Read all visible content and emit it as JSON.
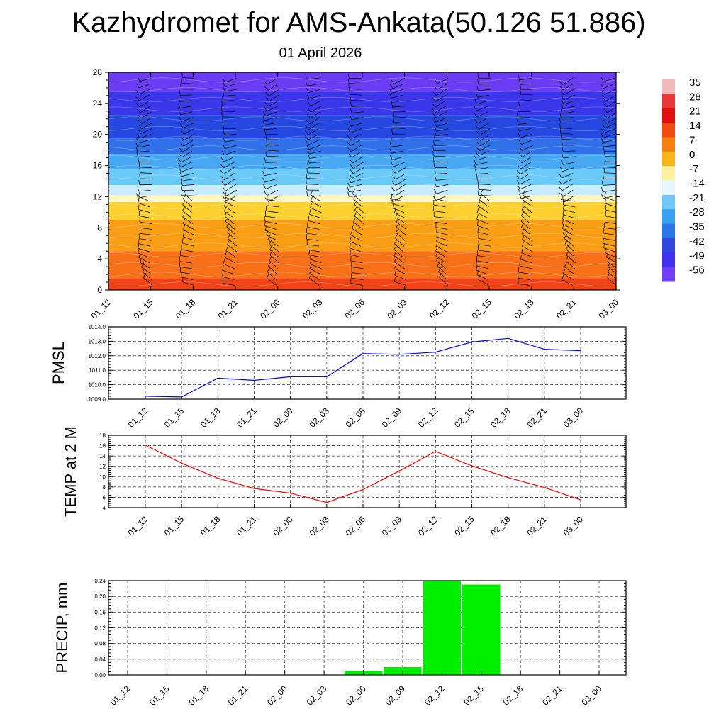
{
  "header": {
    "title": "Kazhydromet for AMS-Ankata(50.126 51.886)",
    "date": "01 April 2026"
  },
  "chart_data": [
    {
      "type": "heatmap",
      "name": "vertical-cross-section",
      "title": "",
      "xlabel": "",
      "ylabel": "",
      "categories": [
        "01_12",
        "01_15",
        "01_18",
        "01_21",
        "02_00",
        "02_03",
        "02_06",
        "02_09",
        "02_12",
        "02_15",
        "02_18",
        "02_21",
        "03_00"
      ],
      "y_ticks": [
        "0",
        "4",
        "8",
        "12",
        "16",
        "20",
        "24",
        "28"
      ],
      "ylim": [
        0,
        28
      ],
      "overlay": "wind barbs",
      "colorbar": {
        "labels": [
          "35",
          "28",
          "21",
          "14",
          "7",
          "0",
          "-7",
          "-14",
          "-21",
          "-28",
          "-35",
          "-42",
          "-49",
          "-56"
        ],
        "colors": [
          "#f0b8b8",
          "#e83838",
          "#e01010",
          "#f04a10",
          "#f88010",
          "#fab418",
          "#fff0a0",
          "#e8f6ff",
          "#70c8f8",
          "#38a0f0",
          "#2878e8",
          "#3048e0",
          "#4030f0",
          "#7040f8"
        ]
      },
      "bands": [
        {
          "from": 0,
          "to": 1.5,
          "color": "#f04418"
        },
        {
          "from": 1.5,
          "to": 5,
          "color": "#f87018"
        },
        {
          "from": 5,
          "to": 9,
          "color": "#fa9e16"
        },
        {
          "from": 9,
          "to": 11.3,
          "color": "#fcd030"
        },
        {
          "from": 11.3,
          "to": 12.2,
          "color": "#fff6c0"
        },
        {
          "from": 12.2,
          "to": 13.5,
          "color": "#c8ecff"
        },
        {
          "from": 13.5,
          "to": 15.5,
          "color": "#6ccaf8"
        },
        {
          "from": 15.5,
          "to": 17.5,
          "color": "#48a8f4"
        },
        {
          "from": 17.5,
          "to": 19.5,
          "color": "#3070e8"
        },
        {
          "from": 19.5,
          "to": 22.5,
          "color": "#2448e0"
        },
        {
          "from": 22.5,
          "to": 25.5,
          "color": "#3a36ea"
        },
        {
          "from": 25.5,
          "to": 28,
          "color": "#6a3cf4"
        }
      ]
    },
    {
      "type": "line",
      "name": "pmsl",
      "title": "",
      "xlabel": "",
      "ylabel": "PMSL",
      "categories": [
        "01_12",
        "01_15",
        "01_18",
        "01_21",
        "02_00",
        "02_03",
        "02_06",
        "02_09",
        "02_12",
        "02_15",
        "02_18",
        "02_21",
        "03_00"
      ],
      "values": [
        1009.2,
        1009.15,
        1010.45,
        1010.3,
        1010.55,
        1010.55,
        1012.15,
        1012.1,
        1012.25,
        1012.95,
        1013.2,
        1012.45,
        1012.35
      ],
      "y_ticks": [
        "1009.0",
        "1010.0",
        "1011.0",
        "1012.0",
        "1013.0",
        "1014.0"
      ],
      "ylim": [
        1009.0,
        1014.0
      ],
      "color": "#0000ff",
      "grid": true
    },
    {
      "type": "line",
      "name": "temp-2m",
      "title": "",
      "xlabel": "",
      "ylabel": "TEMP at 2 M",
      "categories": [
        "01_12",
        "01_15",
        "01_18",
        "01_21",
        "02_00",
        "02_03",
        "02_06",
        "02_09",
        "02_12",
        "02_15",
        "02_18",
        "02_21",
        "03_00"
      ],
      "values": [
        16.1,
        12.6,
        9.7,
        7.7,
        6.8,
        5.0,
        7.5,
        11.1,
        14.9,
        12.1,
        9.8,
        7.9,
        5.5
      ],
      "y_ticks": [
        "4",
        "6",
        "8",
        "10",
        "12",
        "14",
        "16",
        "18"
      ],
      "ylim": [
        4,
        18
      ],
      "color": "#ff0000",
      "grid": true
    },
    {
      "type": "bar",
      "name": "precip",
      "title": "",
      "xlabel": "",
      "ylabel": "PRECIP, mm",
      "categories": [
        "01_12",
        "01_15",
        "01_18",
        "01_21",
        "02_00",
        "02_03",
        "02_06",
        "02_09",
        "02_12",
        "02_15",
        "02_18",
        "02_21",
        "03_00"
      ],
      "values": [
        0,
        0,
        0,
        0,
        0,
        0,
        0.01,
        0.02,
        0.24,
        0.23,
        0,
        0,
        0
      ],
      "y_ticks": [
        "0.00",
        "0.04",
        "0.08",
        "0.12",
        "0.16",
        "0.20",
        "0.24"
      ],
      "ylim": [
        0,
        0.24
      ],
      "color": "#00ee00",
      "grid": true
    }
  ]
}
